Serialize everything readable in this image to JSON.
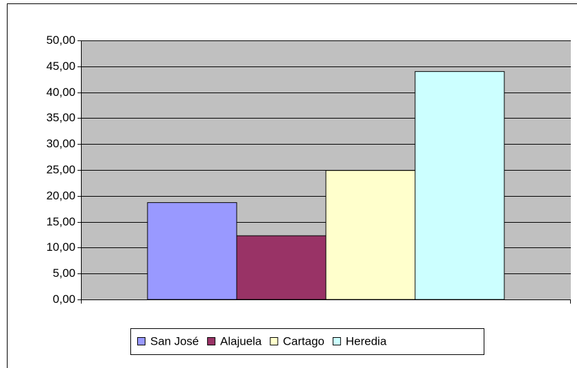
{
  "chart_data": {
    "type": "bar",
    "categories": [
      null
    ],
    "series": [
      {
        "name": "San José",
        "color": "#9999ff",
        "values": [
          18.7
        ]
      },
      {
        "name": "Alajuela",
        "color": "#993366",
        "values": [
          12.3
        ]
      },
      {
        "name": "Cartago",
        "color": "#ffffcc",
        "values": [
          24.9
        ]
      },
      {
        "name": "Heredia",
        "color": "#ccffff",
        "values": [
          44.0
        ]
      }
    ],
    "ylim": [
      0,
      50
    ],
    "yticks": [
      {
        "value": 0,
        "label": "0,00"
      },
      {
        "value": 5,
        "label": "5,00"
      },
      {
        "value": 10,
        "label": "10,00"
      },
      {
        "value": 15,
        "label": "15,00"
      },
      {
        "value": 20,
        "label": "20,00"
      },
      {
        "value": 25,
        "label": "25,00"
      },
      {
        "value": 30,
        "label": "30,00"
      },
      {
        "value": 35,
        "label": "35,00"
      },
      {
        "value": 40,
        "label": "40,00"
      },
      {
        "value": 45,
        "label": "45,00"
      },
      {
        "value": 50,
        "label": "50,00"
      }
    ],
    "grid": true,
    "plot_background": "#c0c0c0",
    "legend": "bottom"
  }
}
